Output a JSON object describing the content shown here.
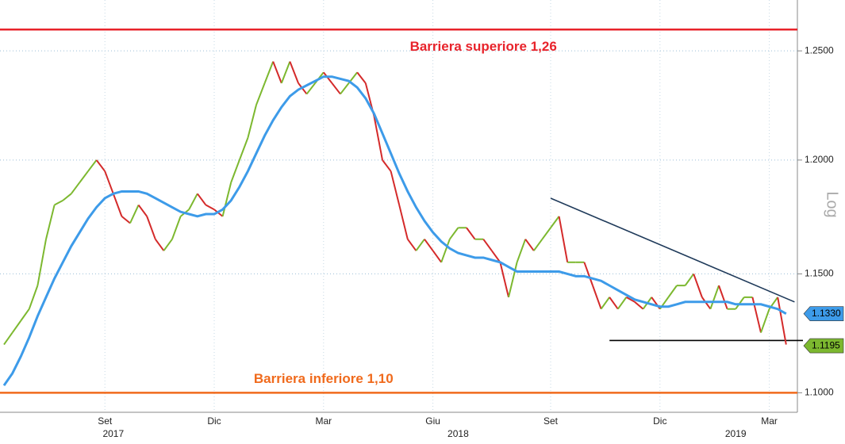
{
  "chart_data": {
    "type": "line",
    "log_scale": true,
    "grid": true,
    "axis_label": "Log",
    "categories": [
      null,
      null,
      null,
      null,
      null,
      null,
      null,
      null,
      null,
      null,
      null,
      null,
      "Set",
      null,
      null,
      null,
      null,
      null,
      null,
      null,
      null,
      null,
      null,
      null,
      null,
      "Dic",
      null,
      null,
      null,
      null,
      null,
      null,
      null,
      null,
      null,
      null,
      null,
      null,
      "Mar",
      null,
      null,
      null,
      null,
      null,
      null,
      null,
      null,
      null,
      null,
      null,
      null,
      "Giu",
      null,
      null,
      null,
      null,
      null,
      null,
      null,
      null,
      null,
      null,
      null,
      null,
      null,
      "Set",
      null,
      null,
      null,
      null,
      null,
      null,
      null,
      null,
      null,
      null,
      null,
      null,
      "Dic",
      null,
      null,
      null,
      null,
      null,
      null,
      null,
      null,
      null,
      null,
      null,
      null,
      "Mar",
      null,
      null
    ],
    "years": [
      {
        "label": "2017",
        "index": 13
      },
      {
        "label": "2018",
        "index": 54
      },
      {
        "label": "2019",
        "index": 87
      }
    ],
    "ylim": [
      1.092,
      1.274
    ],
    "yticks": [
      {
        "value": 1.1,
        "label": "1.1000"
      },
      {
        "value": 1.15,
        "label": "1.1500"
      },
      {
        "value": 1.2,
        "label": "1.2000"
      },
      {
        "value": 1.25,
        "label": "1.2500"
      }
    ],
    "series": [
      {
        "color_up": "#7cb82f",
        "color_down": "#d42a2a",
        "values": [
          1.12,
          1.125,
          1.13,
          1.135,
          1.145,
          1.165,
          1.18,
          1.182,
          1.185,
          1.19,
          1.195,
          1.2,
          1.195,
          1.185,
          1.175,
          1.172,
          1.18,
          1.175,
          1.165,
          1.16,
          1.165,
          1.175,
          1.178,
          1.185,
          1.18,
          1.178,
          1.175,
          1.19,
          1.2,
          1.21,
          1.225,
          1.235,
          1.245,
          1.235,
          1.245,
          1.235,
          1.23,
          1.235,
          1.24,
          1.235,
          1.23,
          1.235,
          1.24,
          1.235,
          1.22,
          1.2,
          1.195,
          1.18,
          1.165,
          1.16,
          1.165,
          1.16,
          1.155,
          1.165,
          1.17,
          1.17,
          1.165,
          1.165,
          1.16,
          1.155,
          1.14,
          1.155,
          1.165,
          1.16,
          1.165,
          1.17,
          1.175,
          1.155,
          1.155,
          1.155,
          1.145,
          1.135,
          1.14,
          1.135,
          1.14,
          1.138,
          1.135,
          1.14,
          1.135,
          1.14,
          1.145,
          1.145,
          1.15,
          1.14,
          1.135,
          1.145,
          1.135,
          1.135,
          1.14,
          1.14,
          1.125,
          1.135,
          1.14,
          1.12
        ]
      },
      {
        "color": "#3d9be9",
        "values": [
          1.103,
          1.108,
          1.115,
          1.123,
          1.132,
          1.14,
          1.148,
          1.155,
          1.162,
          1.168,
          1.174,
          1.179,
          1.183,
          1.185,
          1.186,
          1.186,
          1.186,
          1.185,
          1.183,
          1.181,
          1.179,
          1.177,
          1.176,
          1.175,
          1.176,
          1.176,
          1.178,
          1.182,
          1.188,
          1.195,
          1.203,
          1.211,
          1.218,
          1.224,
          1.229,
          1.232,
          1.234,
          1.236,
          1.238,
          1.238,
          1.237,
          1.236,
          1.233,
          1.228,
          1.221,
          1.212,
          1.203,
          1.194,
          1.186,
          1.179,
          1.173,
          1.168,
          1.164,
          1.161,
          1.159,
          1.158,
          1.157,
          1.157,
          1.156,
          1.155,
          1.153,
          1.151,
          1.151,
          1.151,
          1.151,
          1.151,
          1.151,
          1.15,
          1.149,
          1.149,
          1.148,
          1.147,
          1.145,
          1.143,
          1.141,
          1.139,
          1.138,
          1.137,
          1.136,
          1.136,
          1.137,
          1.138,
          1.138,
          1.138,
          1.138,
          1.138,
          1.138,
          1.137,
          1.137,
          1.137,
          1.137,
          1.136,
          1.135,
          1.133
        ]
      }
    ],
    "hlines": [
      {
        "value": 1.26,
        "color": "#e8232b",
        "label": "Barriera superiore 1,26",
        "label_index": 57
      },
      {
        "value": 1.1,
        "color": "#f06a1c",
        "label": "Barriera inferiore 1,10",
        "label_index": 38
      }
    ],
    "trendlines": [
      {
        "x0": 65,
        "y0": 1.183,
        "x1": 94,
        "y1": 1.138,
        "color": "#1f3a5a"
      },
      {
        "x0": 72,
        "y0": 1.1217,
        "x1": 95,
        "y1": 1.1217,
        "color": "#000000"
      }
    ],
    "last_labels": [
      {
        "value": 1.133,
        "label": "1.1330",
        "color": "#3d9be9"
      },
      {
        "value": 1.1195,
        "label": "1.1195",
        "color": "#7cb82f"
      }
    ]
  }
}
